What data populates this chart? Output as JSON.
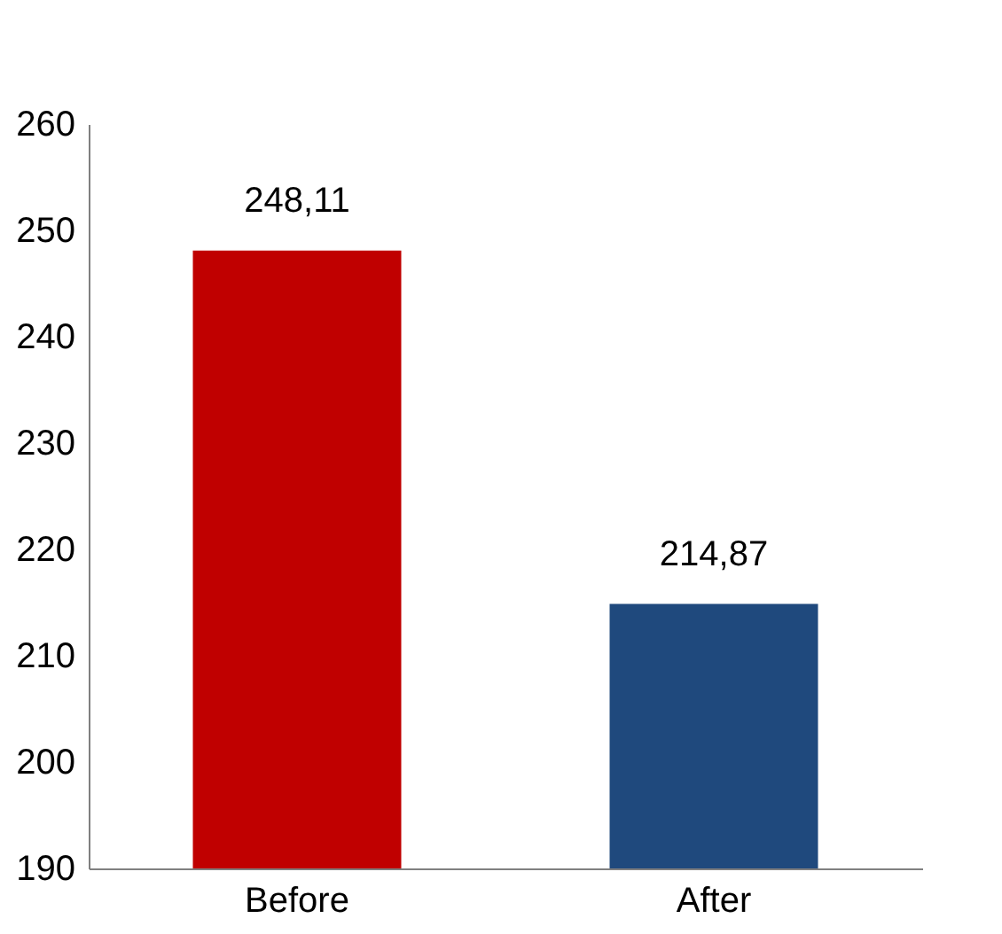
{
  "chart_data": {
    "type": "bar",
    "categories": [
      "Before",
      "After"
    ],
    "values": [
      248.11,
      214.87
    ],
    "colors": [
      "#c00000",
      "#1f497d"
    ],
    "value_labels": [
      "248,11",
      "214,87"
    ],
    "ylim": [
      190,
      260
    ],
    "yticks": [
      190,
      200,
      210,
      220,
      230,
      240,
      250,
      260
    ],
    "grid": false,
    "legend": false
  }
}
